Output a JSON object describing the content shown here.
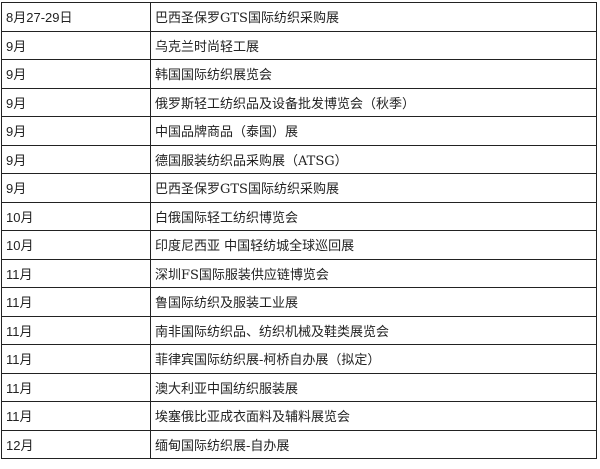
{
  "rows": [
    {
      "date": "8月27-29日",
      "event": "巴西圣保罗GTS国际纺织采购展"
    },
    {
      "date": "9月",
      "event": "乌克兰时尚轻工展"
    },
    {
      "date": "9月",
      "event": "韩国国际纺织展览会"
    },
    {
      "date": "9月",
      "event": "俄罗斯轻工纺织品及设备批发博览会（秋季）"
    },
    {
      "date": "9月",
      "event": "中国品牌商品（泰国）展"
    },
    {
      "date": "9月",
      "event": "德国服装纺织品采购展（ATSG）"
    },
    {
      "date": "9月",
      "event": "巴西圣保罗GTS国际纺织采购展"
    },
    {
      "date": "10月",
      "event": "白俄国际轻工纺织博览会"
    },
    {
      "date": "10月",
      "event": "印度尼西亚 中国轻纺城全球巡回展"
    },
    {
      "date": "11月",
      "event": "深圳FS国际服装供应链博览会"
    },
    {
      "date": "11月",
      "event": "鲁国际纺织及服装工业展"
    },
    {
      "date": "11月",
      "event": "南非国际纺织品、纺织机械及鞋类展览会"
    },
    {
      "date": "11月",
      "event": "菲律宾国际纺织展-柯桥自办展（拟定）"
    },
    {
      "date": "11月",
      "event": "澳大利亚中国纺织服装展"
    },
    {
      "date": "11月",
      "event": "埃塞俄比亚成衣面料及辅料展览会"
    },
    {
      "date": "12月",
      "event": "缅甸国际纺织展-自办展"
    }
  ]
}
